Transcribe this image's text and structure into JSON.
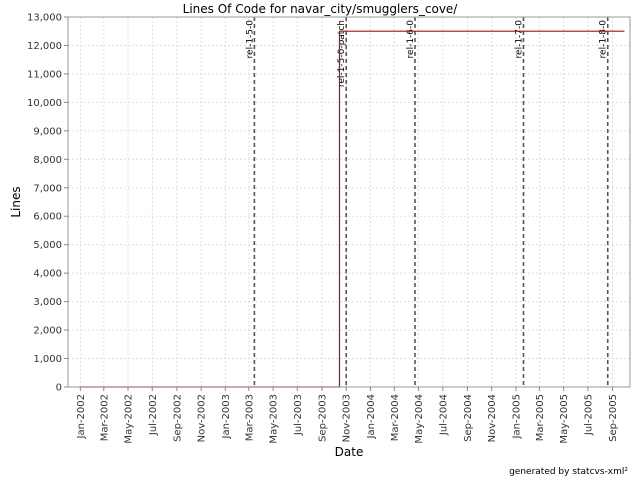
{
  "chart_data": {
    "type": "line",
    "title": "Lines Of Code for navar_city/smugglers_cove/",
    "xlabel": "Date",
    "ylabel": "Lines",
    "footer": "generated by statcvs-xml²",
    "ylim": [
      0,
      13000
    ],
    "xlim": [
      "2001-12-01",
      "2005-10-15"
    ],
    "grid": true,
    "colors": {
      "series": "#cc0000",
      "marker": "#555555",
      "grid": "#dddddd"
    },
    "y_ticks": [
      0,
      1000,
      2000,
      3000,
      4000,
      5000,
      6000,
      7000,
      8000,
      9000,
      10000,
      11000,
      12000,
      13000
    ],
    "y_tick_labels": [
      "0",
      "1,000",
      "2,000",
      "3,000",
      "4,000",
      "5,000",
      "6,000",
      "7,000",
      "8,000",
      "9,000",
      "10,000",
      "11,000",
      "12,000",
      "13,000"
    ],
    "x_ticks": [
      "2002-01-01",
      "2002-03-01",
      "2002-05-01",
      "2002-07-01",
      "2002-09-01",
      "2002-11-01",
      "2003-01-01",
      "2003-03-01",
      "2003-05-01",
      "2003-07-01",
      "2003-09-01",
      "2003-11-01",
      "2004-01-01",
      "2004-03-01",
      "2004-05-01",
      "2004-07-01",
      "2004-09-01",
      "2004-11-01",
      "2005-01-01",
      "2005-03-01",
      "2005-05-01",
      "2005-07-01",
      "2005-09-01"
    ],
    "x_tick_labels": [
      "Jan-2002",
      "Mar-2002",
      "May-2002",
      "Jul-2002",
      "Sep-2002",
      "Nov-2002",
      "Jan-2003",
      "Mar-2003",
      "May-2003",
      "Jul-2003",
      "Sep-2003",
      "Nov-2003",
      "Jan-2004",
      "Mar-2004",
      "May-2004",
      "Jul-2004",
      "Sep-2004",
      "Nov-2004",
      "Jan-2005",
      "Mar-2005",
      "May-2005",
      "Jul-2005",
      "Sep-2005"
    ],
    "series": [
      {
        "x": [
          "2002-01-01",
          "2003-10-15",
          "2003-10-15",
          "2005-10-01"
        ],
        "y": [
          0,
          0,
          12500,
          12500
        ]
      }
    ],
    "markers": [
      {
        "date": "2003-03-15",
        "label": "rel-1-5-0"
      },
      {
        "date": "2003-11-01",
        "label": "rel-1-5-0-patch"
      },
      {
        "date": "2004-04-22",
        "label": "rel-1-6-0"
      },
      {
        "date": "2005-01-20",
        "label": "rel-1-7-0"
      },
      {
        "date": "2005-08-20",
        "label": "rel-1-8-0"
      }
    ]
  }
}
